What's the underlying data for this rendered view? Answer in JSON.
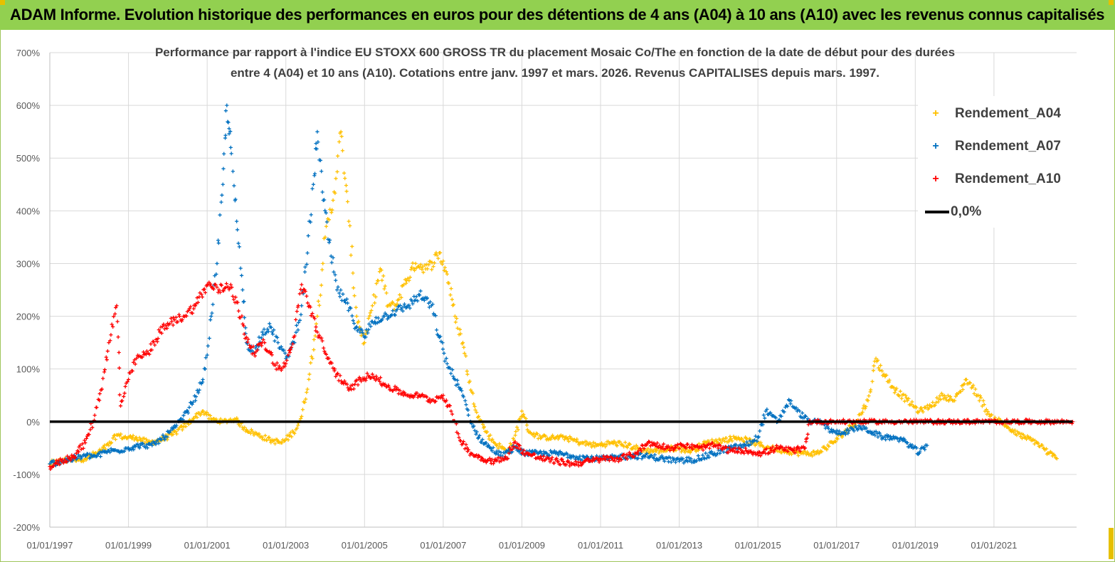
{
  "banner": {
    "title": "ADAM Informe. Evolution historique des performances en euros pour des détentions de 4 ans (A04) à 10 ans (A10) avec les revenus connus capitalisés"
  },
  "chart_data": {
    "type": "scatter",
    "title_line1": "Performance par rapport à l'indice EU STOXX 600 GROSS TR  du placement Mosaic Co/The en fonction de la date de début pour des durées",
    "title_line2": "entre 4 (A04) et 10 ans (A10). Cotations entre janv. 1997 et mars. 2026. Revenus CAPITALISES depuis mars. 1997.",
    "ylim": [
      -200,
      700
    ],
    "y_ticks": [
      "700%",
      "600%",
      "500%",
      "400%",
      "300%",
      "200%",
      "100%",
      "0%",
      "-100%",
      "-200%"
    ],
    "x_ticks": [
      "01/01/1997",
      "01/01/1999",
      "01/01/2001",
      "01/01/2003",
      "01/01/2005",
      "01/01/2007",
      "01/01/2009",
      "01/01/2011",
      "01/01/2013",
      "01/01/2015",
      "01/01/2017",
      "01/01/2019",
      "01/01/2021"
    ],
    "xlim": [
      1997.0,
      2023.1
    ],
    "grid": true,
    "legend_position": "top-right",
    "series": [
      {
        "name": "Rendement_A04",
        "color": "#ffc000",
        "marker": "plus",
        "points": [
          [
            1997.0,
            -80
          ],
          [
            1997.3,
            -75
          ],
          [
            1997.6,
            -70
          ],
          [
            1997.9,
            -70
          ],
          [
            1998.2,
            -60
          ],
          [
            1998.5,
            -45
          ],
          [
            1998.7,
            -25
          ],
          [
            1998.9,
            -30
          ],
          [
            1999.2,
            -30
          ],
          [
            1999.5,
            -40
          ],
          [
            1999.8,
            -35
          ],
          [
            2000.1,
            -25
          ],
          [
            2000.4,
            -10
          ],
          [
            2000.7,
            10
          ],
          [
            2000.9,
            20
          ],
          [
            2001.1,
            5
          ],
          [
            2001.4,
            0
          ],
          [
            2001.7,
            5
          ],
          [
            2002.0,
            -15
          ],
          [
            2002.3,
            -25
          ],
          [
            2002.6,
            -35
          ],
          [
            2002.9,
            -40
          ],
          [
            2003.2,
            -20
          ],
          [
            2003.4,
            10
          ],
          [
            2003.6,
            90
          ],
          [
            2003.8,
            200
          ],
          [
            2004.0,
            350
          ],
          [
            2004.2,
            420
          ],
          [
            2004.4,
            550
          ],
          [
            2004.6,
            380
          ],
          [
            2004.8,
            200
          ],
          [
            2005.0,
            150
          ],
          [
            2005.2,
            220
          ],
          [
            2005.4,
            290
          ],
          [
            2005.6,
            220
          ],
          [
            2005.8,
            220
          ],
          [
            2006.0,
            260
          ],
          [
            2006.3,
            300
          ],
          [
            2006.6,
            290
          ],
          [
            2006.9,
            320
          ],
          [
            2007.1,
            280
          ],
          [
            2007.3,
            200
          ],
          [
            2007.5,
            150
          ],
          [
            2007.7,
            60
          ],
          [
            2007.9,
            10
          ],
          [
            2008.1,
            -20
          ],
          [
            2008.3,
            -40
          ],
          [
            2008.6,
            -55
          ],
          [
            2008.8,
            -35
          ],
          [
            2009.0,
            20
          ],
          [
            2009.2,
            -20
          ],
          [
            2009.5,
            -30
          ],
          [
            2009.8,
            -30
          ],
          [
            2010.1,
            -30
          ],
          [
            2010.5,
            -40
          ],
          [
            2010.9,
            -45
          ],
          [
            2011.3,
            -40
          ],
          [
            2011.7,
            -45
          ],
          [
            2012.1,
            -55
          ],
          [
            2012.5,
            -55
          ],
          [
            2012.9,
            -50
          ],
          [
            2013.3,
            -55
          ],
          [
            2013.7,
            -40
          ],
          [
            2014.1,
            -35
          ],
          [
            2014.5,
            -30
          ],
          [
            2014.9,
            -40
          ],
          [
            2015.3,
            -50
          ],
          [
            2015.7,
            -55
          ],
          [
            2016.1,
            -60
          ],
          [
            2016.5,
            -60
          ],
          [
            2016.9,
            -40
          ],
          [
            2017.2,
            -20
          ],
          [
            2017.5,
            0
          ],
          [
            2017.8,
            40
          ],
          [
            2018.0,
            120
          ],
          [
            2018.2,
            90
          ],
          [
            2018.5,
            60
          ],
          [
            2018.8,
            40
          ],
          [
            2019.1,
            20
          ],
          [
            2019.4,
            30
          ],
          [
            2019.7,
            50
          ],
          [
            2020.0,
            40
          ],
          [
            2020.3,
            80
          ],
          [
            2020.6,
            50
          ],
          [
            2020.9,
            10
          ],
          [
            2021.2,
            0
          ],
          [
            2021.5,
            -20
          ],
          [
            2021.8,
            -30
          ],
          [
            2022.1,
            -40
          ],
          [
            2022.4,
            -60
          ],
          [
            2022.6,
            -70
          ]
        ]
      },
      {
        "name": "Rendement_A07",
        "color": "#0070c0",
        "marker": "plus",
        "points": [
          [
            1997.0,
            -80
          ],
          [
            1997.3,
            -75
          ],
          [
            1997.6,
            -70
          ],
          [
            1997.9,
            -65
          ],
          [
            1998.2,
            -65
          ],
          [
            1998.5,
            -55
          ],
          [
            1998.7,
            -55
          ],
          [
            1999.0,
            -50
          ],
          [
            1999.3,
            -45
          ],
          [
            1999.6,
            -45
          ],
          [
            1999.9,
            -30
          ],
          [
            2000.2,
            -10
          ],
          [
            2000.5,
            20
          ],
          [
            2000.8,
            60
          ],
          [
            2000.95,
            100
          ],
          [
            2001.1,
            200
          ],
          [
            2001.25,
            300
          ],
          [
            2001.4,
            450
          ],
          [
            2001.5,
            600
          ],
          [
            2001.6,
            520
          ],
          [
            2001.75,
            380
          ],
          [
            2001.9,
            250
          ],
          [
            2002.0,
            150
          ],
          [
            2002.2,
            130
          ],
          [
            2002.4,
            170
          ],
          [
            2002.6,
            180
          ],
          [
            2002.8,
            150
          ],
          [
            2003.0,
            120
          ],
          [
            2003.2,
            150
          ],
          [
            2003.4,
            220
          ],
          [
            2003.55,
            320
          ],
          [
            2003.7,
            450
          ],
          [
            2003.8,
            550
          ],
          [
            2003.95,
            420
          ],
          [
            2004.1,
            340
          ],
          [
            2004.3,
            250
          ],
          [
            2004.5,
            230
          ],
          [
            2004.8,
            180
          ],
          [
            2005.0,
            160
          ],
          [
            2005.2,
            190
          ],
          [
            2005.5,
            200
          ],
          [
            2005.8,
            210
          ],
          [
            2006.1,
            220
          ],
          [
            2006.4,
            240
          ],
          [
            2006.7,
            220
          ],
          [
            2006.9,
            160
          ],
          [
            2007.1,
            110
          ],
          [
            2007.3,
            80
          ],
          [
            2007.5,
            50
          ],
          [
            2007.7,
            0
          ],
          [
            2007.9,
            -30
          ],
          [
            2008.2,
            -50
          ],
          [
            2008.5,
            -65
          ],
          [
            2008.8,
            -50
          ],
          [
            2009.1,
            -60
          ],
          [
            2009.5,
            -60
          ],
          [
            2009.9,
            -60
          ],
          [
            2010.3,
            -65
          ],
          [
            2010.8,
            -70
          ],
          [
            2011.2,
            -70
          ],
          [
            2011.7,
            -65
          ],
          [
            2012.1,
            -65
          ],
          [
            2012.6,
            -70
          ],
          [
            2013.0,
            -75
          ],
          [
            2013.5,
            -70
          ],
          [
            2013.9,
            -60
          ],
          [
            2014.3,
            -50
          ],
          [
            2014.7,
            -45
          ],
          [
            2015.0,
            -30
          ],
          [
            2015.2,
            20
          ],
          [
            2015.5,
            0
          ],
          [
            2015.8,
            40
          ],
          [
            2016.0,
            20
          ],
          [
            2016.3,
            0
          ],
          [
            2016.6,
            0
          ],
          [
            2016.9,
            -20
          ],
          [
            2017.2,
            -20
          ],
          [
            2017.6,
            -10
          ],
          [
            2017.9,
            -20
          ],
          [
            2018.2,
            -30
          ],
          [
            2018.5,
            -30
          ],
          [
            2018.8,
            -40
          ],
          [
            2019.1,
            -60
          ],
          [
            2019.3,
            -45
          ]
        ]
      },
      {
        "name": "Rendement_A10",
        "color": "#ff0000",
        "marker": "plus",
        "points": [
          [
            1997.0,
            -85
          ],
          [
            1997.3,
            -75
          ],
          [
            1997.6,
            -65
          ],
          [
            1997.9,
            -40
          ],
          [
            1998.1,
            0
          ],
          [
            1998.3,
            60
          ],
          [
            1998.5,
            150
          ],
          [
            1998.7,
            220
          ],
          [
            1998.8,
            30
          ],
          [
            1999.0,
            80
          ],
          [
            1999.2,
            120
          ],
          [
            1999.5,
            130
          ],
          [
            1999.8,
            170
          ],
          [
            2000.1,
            190
          ],
          [
            2000.4,
            200
          ],
          [
            2000.7,
            220
          ],
          [
            2001.0,
            260
          ],
          [
            2001.3,
            250
          ],
          [
            2001.6,
            260
          ],
          [
            2001.8,
            210
          ],
          [
            2002.0,
            160
          ],
          [
            2002.2,
            130
          ],
          [
            2002.4,
            150
          ],
          [
            2002.6,
            130
          ],
          [
            2002.8,
            100
          ],
          [
            2003.0,
            110
          ],
          [
            2003.2,
            160
          ],
          [
            2003.4,
            260
          ],
          [
            2003.6,
            220
          ],
          [
            2003.8,
            170
          ],
          [
            2004.0,
            130
          ],
          [
            2004.3,
            90
          ],
          [
            2004.6,
            60
          ],
          [
            2004.9,
            80
          ],
          [
            2005.2,
            90
          ],
          [
            2005.5,
            70
          ],
          [
            2005.8,
            60
          ],
          [
            2006.1,
            50
          ],
          [
            2006.4,
            50
          ],
          [
            2006.7,
            40
          ],
          [
            2007.0,
            50
          ],
          [
            2007.2,
            20
          ],
          [
            2007.4,
            -30
          ],
          [
            2007.7,
            -60
          ],
          [
            2008.0,
            -70
          ],
          [
            2008.3,
            -75
          ],
          [
            2008.6,
            -70
          ],
          [
            2008.8,
            -40
          ],
          [
            2009.1,
            -60
          ],
          [
            2009.5,
            -70
          ],
          [
            2009.9,
            -75
          ],
          [
            2010.3,
            -80
          ],
          [
            2010.7,
            -75
          ],
          [
            2011.1,
            -70
          ],
          [
            2011.5,
            -70
          ],
          [
            2011.9,
            -60
          ],
          [
            2012.2,
            -40
          ],
          [
            2012.5,
            -45
          ],
          [
            2012.8,
            -50
          ],
          [
            2013.1,
            -45
          ],
          [
            2013.5,
            -50
          ],
          [
            2013.9,
            -45
          ],
          [
            2014.3,
            -55
          ],
          [
            2014.7,
            -55
          ],
          [
            2015.1,
            -60
          ],
          [
            2015.5,
            -50
          ],
          [
            2015.9,
            -55
          ],
          [
            2016.2,
            -50
          ],
          [
            2016.3,
            0
          ],
          [
            2017.0,
            0
          ],
          [
            2018.0,
            0
          ],
          [
            2019.0,
            0
          ],
          [
            2020.0,
            0
          ],
          [
            2021.0,
            0
          ],
          [
            2022.0,
            0
          ],
          [
            2023.0,
            0
          ]
        ]
      },
      {
        "name": "0,0%",
        "color": "#000000",
        "marker": "line",
        "points": [
          [
            1997.0,
            0
          ],
          [
            2023.0,
            0
          ]
        ]
      }
    ]
  }
}
